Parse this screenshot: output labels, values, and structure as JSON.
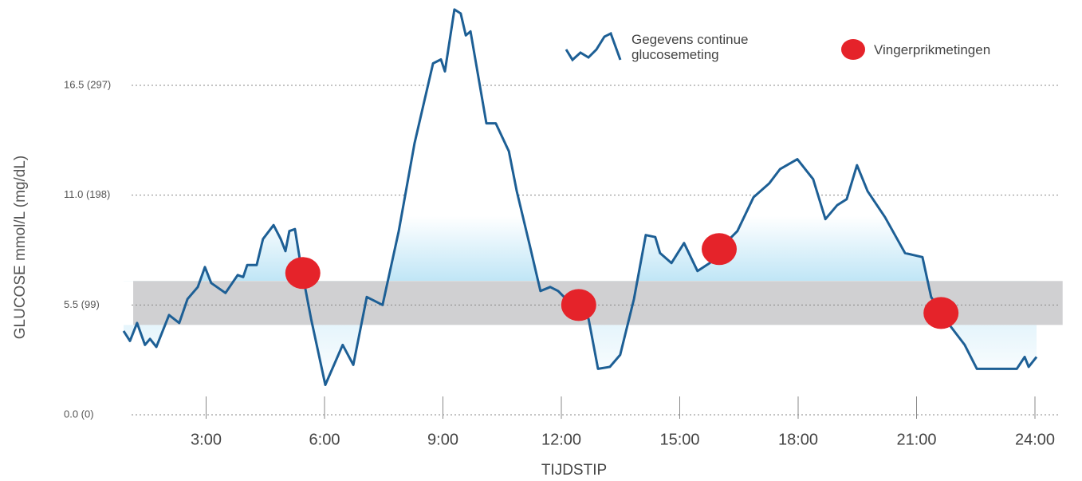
{
  "chart_data": {
    "type": "line",
    "y_label": "GLUCOSE mmol/L (mg/dL)",
    "x_label": "TIJDSTIP",
    "xlim": [
      0.8,
      24.6
    ],
    "ylim": [
      0,
      20.8
    ],
    "xticks": [
      {
        "value": 3,
        "label": "3:00"
      },
      {
        "value": 6,
        "label": "6:00"
      },
      {
        "value": 9,
        "label": "9:00"
      },
      {
        "value": 12,
        "label": "12:00"
      },
      {
        "value": 15,
        "label": "15:00"
      },
      {
        "value": 18,
        "label": "18:00"
      },
      {
        "value": 21,
        "label": "21:00"
      },
      {
        "value": 24,
        "label": "24:00"
      }
    ],
    "yticks": [
      {
        "value": 0,
        "label": "0.0     (0)"
      },
      {
        "value": 5.5,
        "label": "5.5     (99)"
      },
      {
        "value": 11,
        "label": "11.0  (198)"
      },
      {
        "value": 16.5,
        "label": "16.5  (297)"
      }
    ],
    "grid": true,
    "target_range": [
      4.5,
      6.7
    ],
    "band_color": "#d0d0d2",
    "legend": "top-right",
    "series": [
      {
        "name": "Gegevens continue glucosemeting",
        "color": "#1d5f95",
        "x": [
          0.91,
          1.07,
          1.25,
          1.45,
          1.58,
          1.74,
          2.06,
          2.32,
          2.53,
          2.79,
          2.97,
          3.13,
          3.49,
          3.8,
          3.94,
          4.04,
          4.28,
          4.44,
          4.71,
          4.89,
          5.01,
          5.11,
          5.25,
          5.39,
          5.66,
          6.02,
          6.46,
          6.73,
          7.07,
          7.47,
          7.88,
          8.28,
          8.75,
          8.95,
          9.05,
          9.29,
          9.45,
          9.58,
          9.7,
          10.1,
          10.34,
          10.67,
          10.87,
          11.21,
          11.47,
          11.72,
          11.92,
          12.12,
          12.32,
          12.69,
          12.93,
          13.23,
          13.49,
          13.84,
          14.14,
          14.38,
          14.5,
          14.79,
          15.11,
          15.45,
          15.76,
          16.06,
          16.46,
          16.87,
          17.27,
          17.54,
          17.98,
          18.38,
          18.69,
          18.99,
          19.23,
          19.49,
          19.76,
          20.2,
          20.71,
          21.15,
          21.37,
          21.72,
          22.22,
          22.53,
          23.54,
          23.74,
          23.84,
          24.04
        ],
        "values": [
          4.2,
          3.7,
          4.6,
          3.5,
          3.8,
          3.4,
          5.0,
          4.6,
          5.8,
          6.4,
          7.4,
          6.6,
          6.1,
          7.0,
          6.9,
          7.5,
          7.5,
          8.8,
          9.5,
          8.8,
          8.2,
          9.2,
          9.3,
          7.6,
          4.8,
          1.5,
          3.5,
          2.5,
          5.9,
          5.5,
          9.2,
          13.6,
          17.6,
          17.8,
          17.2,
          20.3,
          20.1,
          19.0,
          19.2,
          14.6,
          14.6,
          13.2,
          11.2,
          8.4,
          6.2,
          6.4,
          6.2,
          5.8,
          5.6,
          4.8,
          2.3,
          2.4,
          3.0,
          5.8,
          9.0,
          8.9,
          8.1,
          7.6,
          8.6,
          7.2,
          7.6,
          8.4,
          9.2,
          10.9,
          11.6,
          12.3,
          12.8,
          11.8,
          9.8,
          10.5,
          10.8,
          12.5,
          11.2,
          9.9,
          8.1,
          7.9,
          5.9,
          4.8,
          3.5,
          2.3,
          2.3,
          2.9,
          2.4,
          2.9
        ]
      },
      {
        "name": "Vingerprikmetingen",
        "color": "#e5232a",
        "type": "scatter",
        "x": [
          5.45,
          12.44,
          16.0,
          21.62
        ],
        "values": [
          7.1,
          5.5,
          8.3,
          5.1
        ]
      }
    ]
  }
}
